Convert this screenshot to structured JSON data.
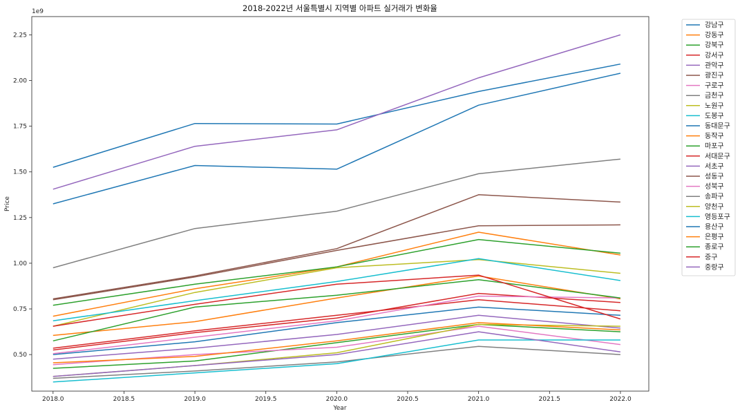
{
  "chart_data": {
    "type": "line",
    "title": "2018-2022년 서울특별시 지역별 아파트 실거래가 변화율",
    "xlabel": "Year",
    "ylabel": "Price",
    "y_offset_text": "1e9",
    "xlim": [
      2018.0,
      2022.0
    ],
    "ylim": [
      0.3,
      2.35
    ],
    "x_ticks": [
      "2018.0",
      "2018.5",
      "2019.0",
      "2019.5",
      "2020.0",
      "2020.5",
      "2021.0",
      "2021.5",
      "2022.0"
    ],
    "y_ticks": [
      "0.50",
      "0.75",
      "1.00",
      "1.25",
      "1.50",
      "1.75",
      "2.00",
      "2.25"
    ],
    "grid": false,
    "legend_position": "outside-right",
    "x": [
      2018,
      2019,
      2020,
      2021,
      2022
    ],
    "series": [
      {
        "name": "강남구",
        "color": "#1f77b4",
        "values": [
          1.525,
          1.765,
          1.762,
          1.94,
          2.09
        ]
      },
      {
        "name": "강동구",
        "color": "#ff7f0e",
        "values": [
          0.71,
          0.86,
          0.98,
          1.17,
          1.045
        ]
      },
      {
        "name": "강북구",
        "color": "#2ca02c",
        "values": [
          0.425,
          0.465,
          0.565,
          0.665,
          0.625
        ]
      },
      {
        "name": "강서구",
        "color": "#d62728",
        "values": [
          0.535,
          0.63,
          0.715,
          0.8,
          0.74
        ]
      },
      {
        "name": "관악구",
        "color": "#9467bd",
        "values": [
          0.475,
          0.535,
          0.61,
          0.715,
          0.645
        ]
      },
      {
        "name": "광진구",
        "color": "#8c564b",
        "values": [
          0.805,
          0.93,
          1.08,
          1.375,
          1.335
        ]
      },
      {
        "name": "구로구",
        "color": "#e377c2",
        "values": [
          0.445,
          0.5,
          0.54,
          0.655,
          0.555
        ]
      },
      {
        "name": "금천구",
        "color": "#7f7f7f",
        "values": [
          0.37,
          0.41,
          0.46,
          0.545,
          0.5
        ]
      },
      {
        "name": "노원구",
        "color": "#bcbd22",
        "values": [
          0.38,
          0.44,
          0.51,
          0.665,
          0.655
        ]
      },
      {
        "name": "도봉구",
        "color": "#17becf",
        "values": [
          0.35,
          0.4,
          0.45,
          0.58,
          0.58
        ]
      },
      {
        "name": "동대문구",
        "color": "#1f77b4",
        "values": [
          0.5,
          0.57,
          0.675,
          0.76,
          0.715
        ]
      },
      {
        "name": "동작구",
        "color": "#ff7f0e",
        "values": [
          0.605,
          0.68,
          0.81,
          0.93,
          0.805
        ]
      },
      {
        "name": "마포구",
        "color": "#2ca02c",
        "values": [
          0.77,
          0.885,
          0.98,
          1.13,
          1.055
        ]
      },
      {
        "name": "서대문구",
        "color": "#d62728",
        "values": [
          0.525,
          0.62,
          0.7,
          0.835,
          0.785
        ]
      },
      {
        "name": "서초구",
        "color": "#9467bd",
        "values": [
          1.405,
          1.64,
          1.73,
          2.015,
          2.25
        ]
      },
      {
        "name": "성동구",
        "color": "#8c564b",
        "values": [
          0.8,
          0.925,
          1.07,
          1.205,
          1.21
        ]
      },
      {
        "name": "성북구",
        "color": "#e377c2",
        "values": [
          0.505,
          0.595,
          0.685,
          0.82,
          0.81
        ]
      },
      {
        "name": "송파구",
        "color": "#7f7f7f",
        "values": [
          0.975,
          1.19,
          1.285,
          1.49,
          1.57
        ]
      },
      {
        "name": "양천구",
        "color": "#bcbd22",
        "values": [
          0.655,
          0.84,
          0.975,
          1.02,
          0.945
        ]
      },
      {
        "name": "영등포구",
        "color": "#17becf",
        "values": [
          0.685,
          0.795,
          0.9,
          1.025,
          0.905
        ]
      },
      {
        "name": "용산구",
        "color": "#1f77b4",
        "values": [
          1.325,
          1.535,
          1.515,
          1.865,
          2.04
        ]
      },
      {
        "name": "은평구",
        "color": "#ff7f0e",
        "values": [
          0.455,
          0.49,
          0.575,
          0.675,
          0.635
        ]
      },
      {
        "name": "종로구",
        "color": "#2ca02c",
        "values": [
          0.575,
          0.76,
          0.825,
          0.91,
          0.81
        ]
      },
      {
        "name": "중구",
        "color": "#d62728",
        "values": [
          0.655,
          0.775,
          0.885,
          0.935,
          0.695
        ]
      },
      {
        "name": "중랑구",
        "color": "#9467bd",
        "values": [
          0.38,
          0.44,
          0.5,
          0.625,
          0.515
        ]
      }
    ]
  }
}
